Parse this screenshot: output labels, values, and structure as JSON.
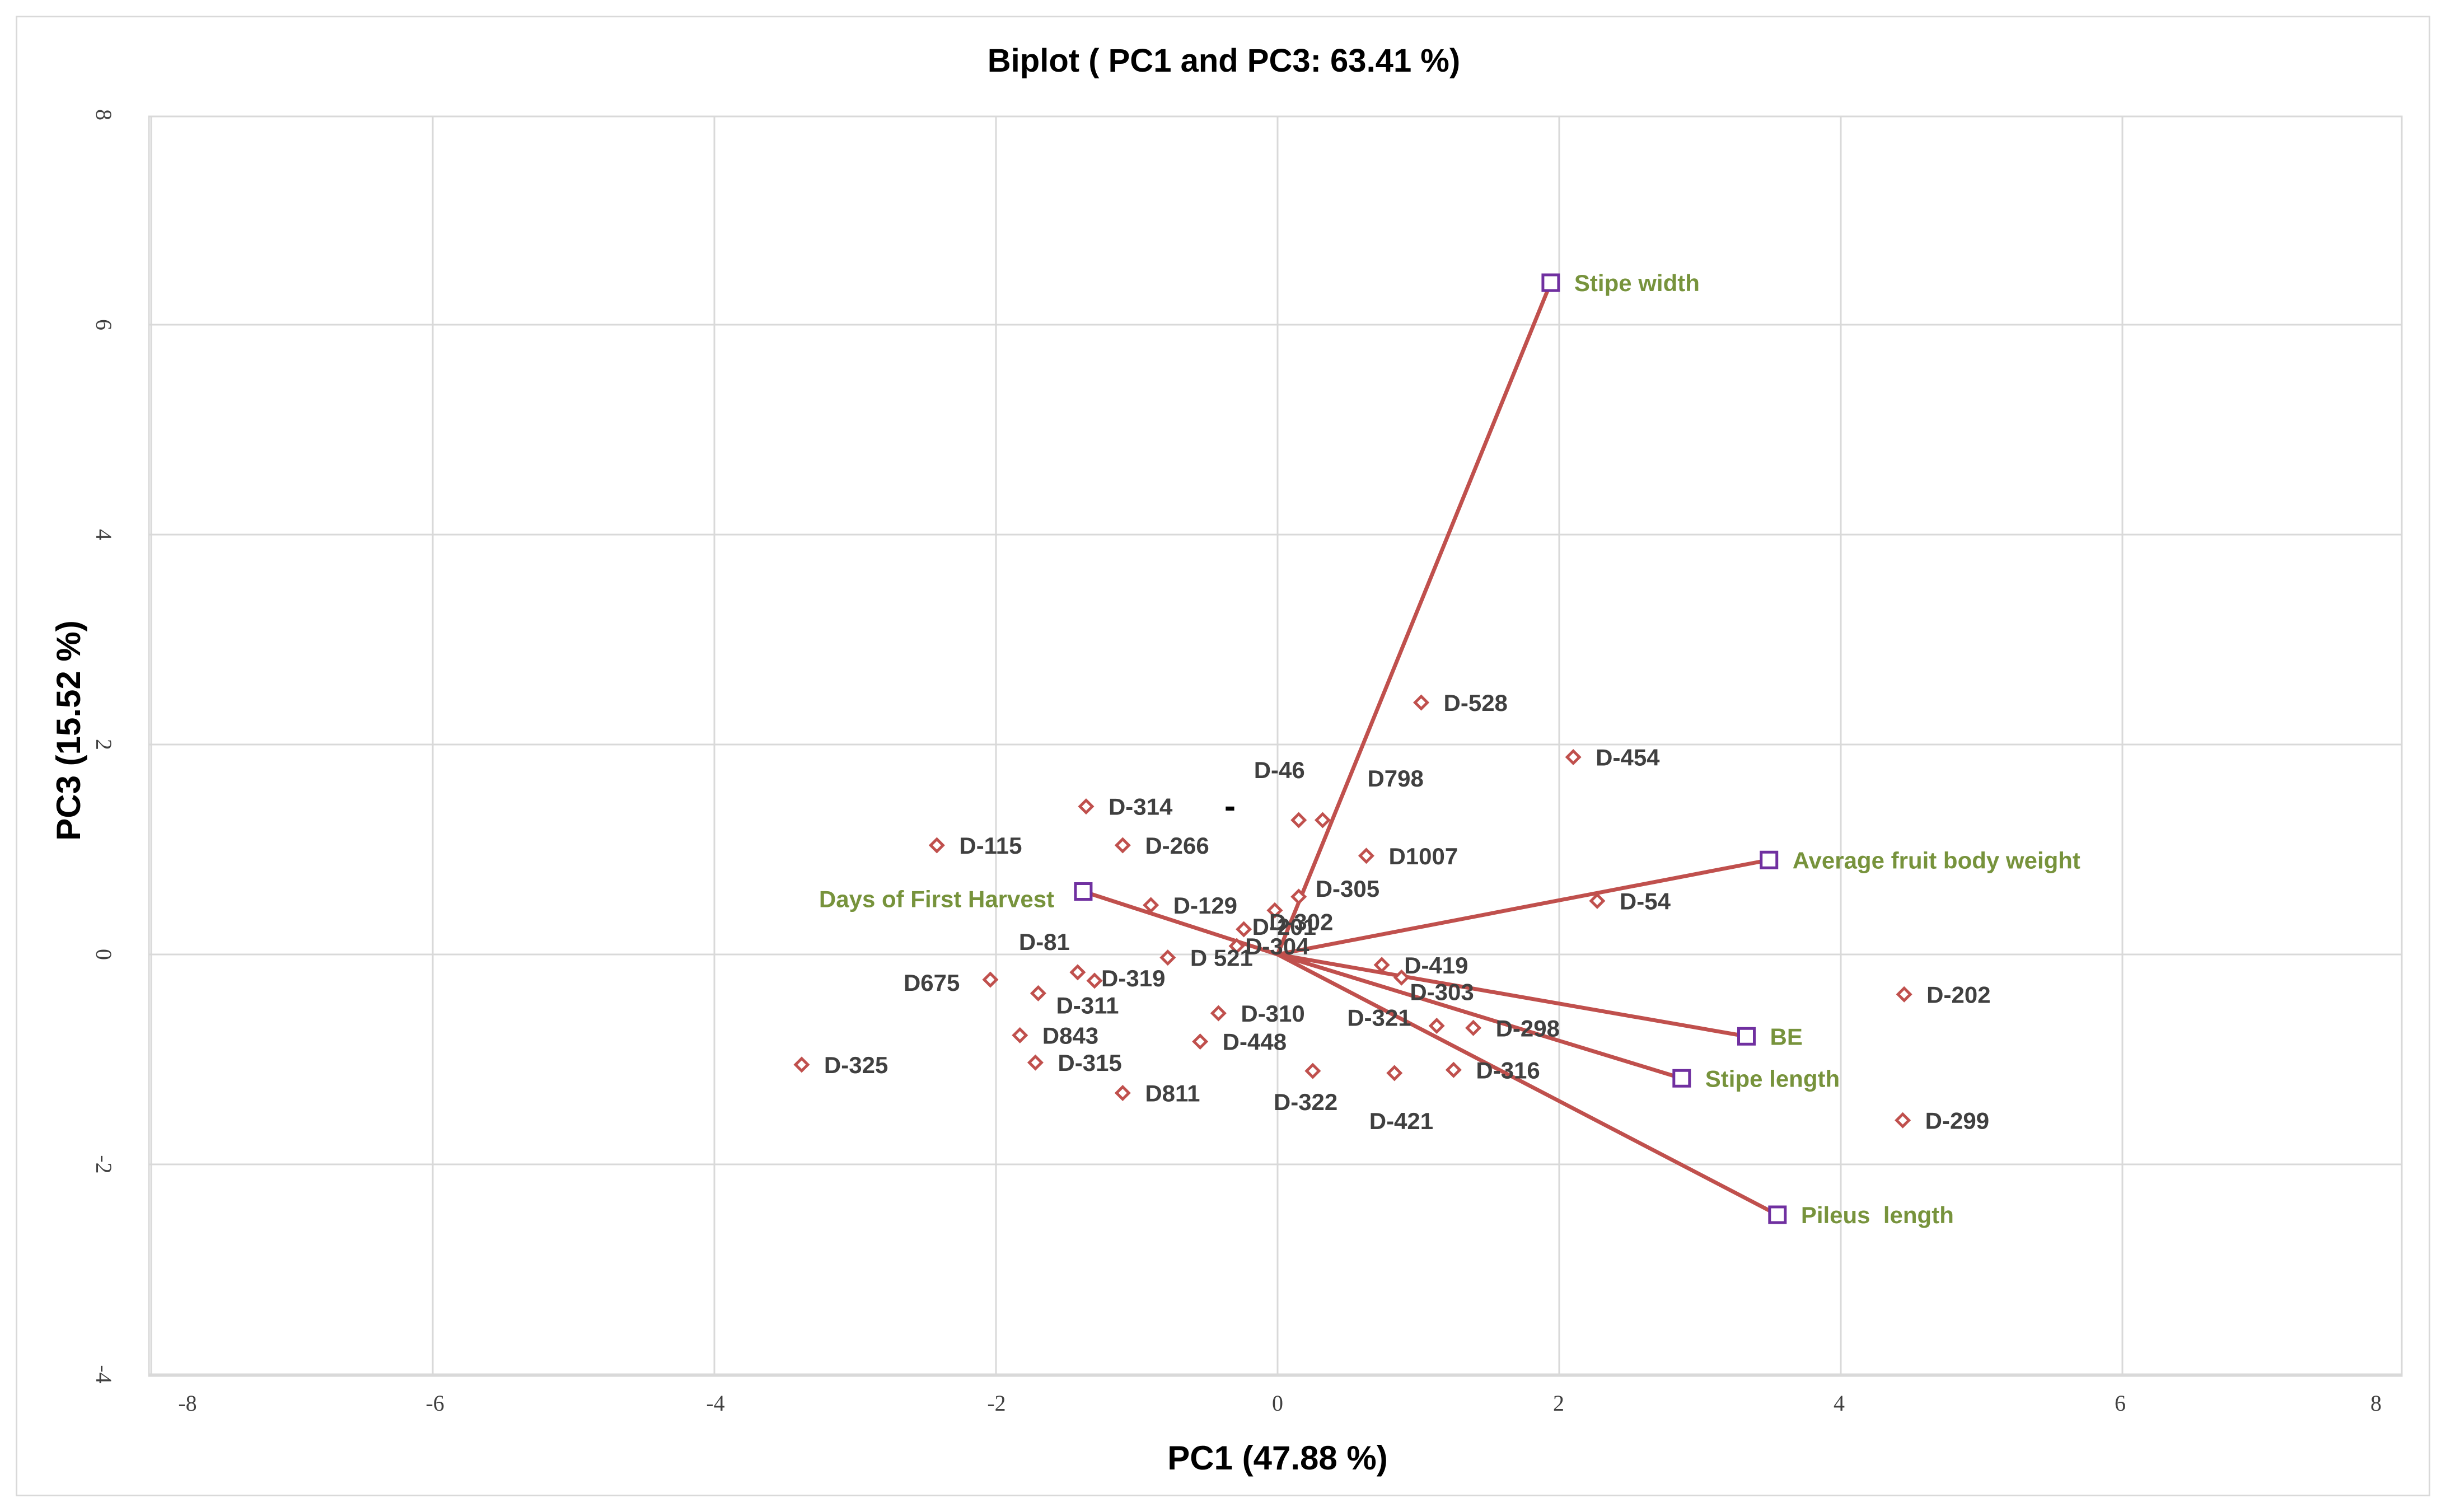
{
  "colors": {
    "vector": "#c0504d",
    "observation": "#c0504d",
    "variable_marker": "#7030a0",
    "variable_text": "#77933c",
    "grid": "#d9d9d9",
    "text": "#404040"
  },
  "chart_data": {
    "type": "scatter",
    "title": "Biplot ( PC1 and PC3: 63.41 %)",
    "xlabel": "PC1 (47.88 %)",
    "ylabel": "PC3 (15.52 %)",
    "xlim": [
      -8,
      8
    ],
    "ylim": [
      -4,
      8
    ],
    "grid": true,
    "x_ticks": [
      -8,
      -6,
      -4,
      -2,
      0,
      2,
      4,
      6,
      8
    ],
    "y_ticks": [
      -4,
      -2,
      0,
      2,
      4,
      6,
      8
    ],
    "stray_mark": "-",
    "observations": [
      {
        "label": "D-528",
        "x": 1.02,
        "y": 2.4
      },
      {
        "label": "D-454",
        "x": 2.1,
        "y": 1.88
      },
      {
        "label": "D-46",
        "x": 0.15,
        "y": 1.28
      },
      {
        "label": "D798",
        "x": 0.32,
        "y": 1.28
      },
      {
        "label": "D-314",
        "x": -1.36,
        "y": 1.41
      },
      {
        "label": "D-115",
        "x": -2.42,
        "y": 1.04
      },
      {
        "label": "D-266",
        "x": -1.1,
        "y": 1.04
      },
      {
        "label": "D1007",
        "x": 0.63,
        "y": 0.94
      },
      {
        "label": "D-305",
        "x": 0.15,
        "y": 0.55
      },
      {
        "label": "D-302",
        "x": -0.02,
        "y": 0.42
      },
      {
        "label": "D-129",
        "x": -0.9,
        "y": 0.47
      },
      {
        "label": "D-54",
        "x": 2.27,
        "y": 0.51
      },
      {
        "label": "D-201",
        "x": -0.24,
        "y": 0.24
      },
      {
        "label": "D-304",
        "x": -0.29,
        "y": 0.08
      },
      {
        "label": "D 521",
        "x": -0.78,
        "y": -0.03
      },
      {
        "label": "D-81",
        "x": -1.42,
        "y": -0.17
      },
      {
        "label": "D-319",
        "x": -1.3,
        "y": -0.25
      },
      {
        "label": "D675",
        "x": -2.04,
        "y": -0.24
      },
      {
        "label": "D-311",
        "x": -1.7,
        "y": -0.37
      },
      {
        "label": "D-419",
        "x": 0.74,
        "y": -0.1
      },
      {
        "label": "D-303",
        "x": 0.88,
        "y": -0.22
      },
      {
        "label": "D-310",
        "x": -0.42,
        "y": -0.56
      },
      {
        "label": "D-298",
        "x": 1.39,
        "y": -0.7
      },
      {
        "label": "D843",
        "x": -1.83,
        "y": -0.77
      },
      {
        "label": "D-448",
        "x": -0.55,
        "y": -0.83
      },
      {
        "label": "D-321",
        "x": 1.13,
        "y": -0.68
      },
      {
        "label": "D-325",
        "x": -3.38,
        "y": -1.05
      },
      {
        "label": "D-315",
        "x": -1.72,
        "y": -1.03
      },
      {
        "label": "D-316",
        "x": 1.25,
        "y": -1.1
      },
      {
        "label": "D-322",
        "x": 0.25,
        "y": -1.11
      },
      {
        "label": "D-421",
        "x": 0.83,
        "y": -1.13
      },
      {
        "label": "D811",
        "x": -1.1,
        "y": -1.32
      },
      {
        "label": "D-202",
        "x": 4.45,
        "y": -0.38
      },
      {
        "label": "D-299",
        "x": 4.44,
        "y": -1.58
      }
    ],
    "variables": [
      {
        "label": "Stipe width",
        "x": 1.94,
        "y": 6.4
      },
      {
        "label": "Average fruit body weight",
        "x": 3.49,
        "y": 0.9
      },
      {
        "label": "Days of First Harvest",
        "x": -1.38,
        "y": 0.6
      },
      {
        "label": "BE",
        "x": 3.33,
        "y": -0.78
      },
      {
        "label": "Stipe length",
        "x": 2.87,
        "y": -1.18
      },
      {
        "label": "Pileus  length",
        "x": 3.55,
        "y": -2.48
      }
    ]
  }
}
